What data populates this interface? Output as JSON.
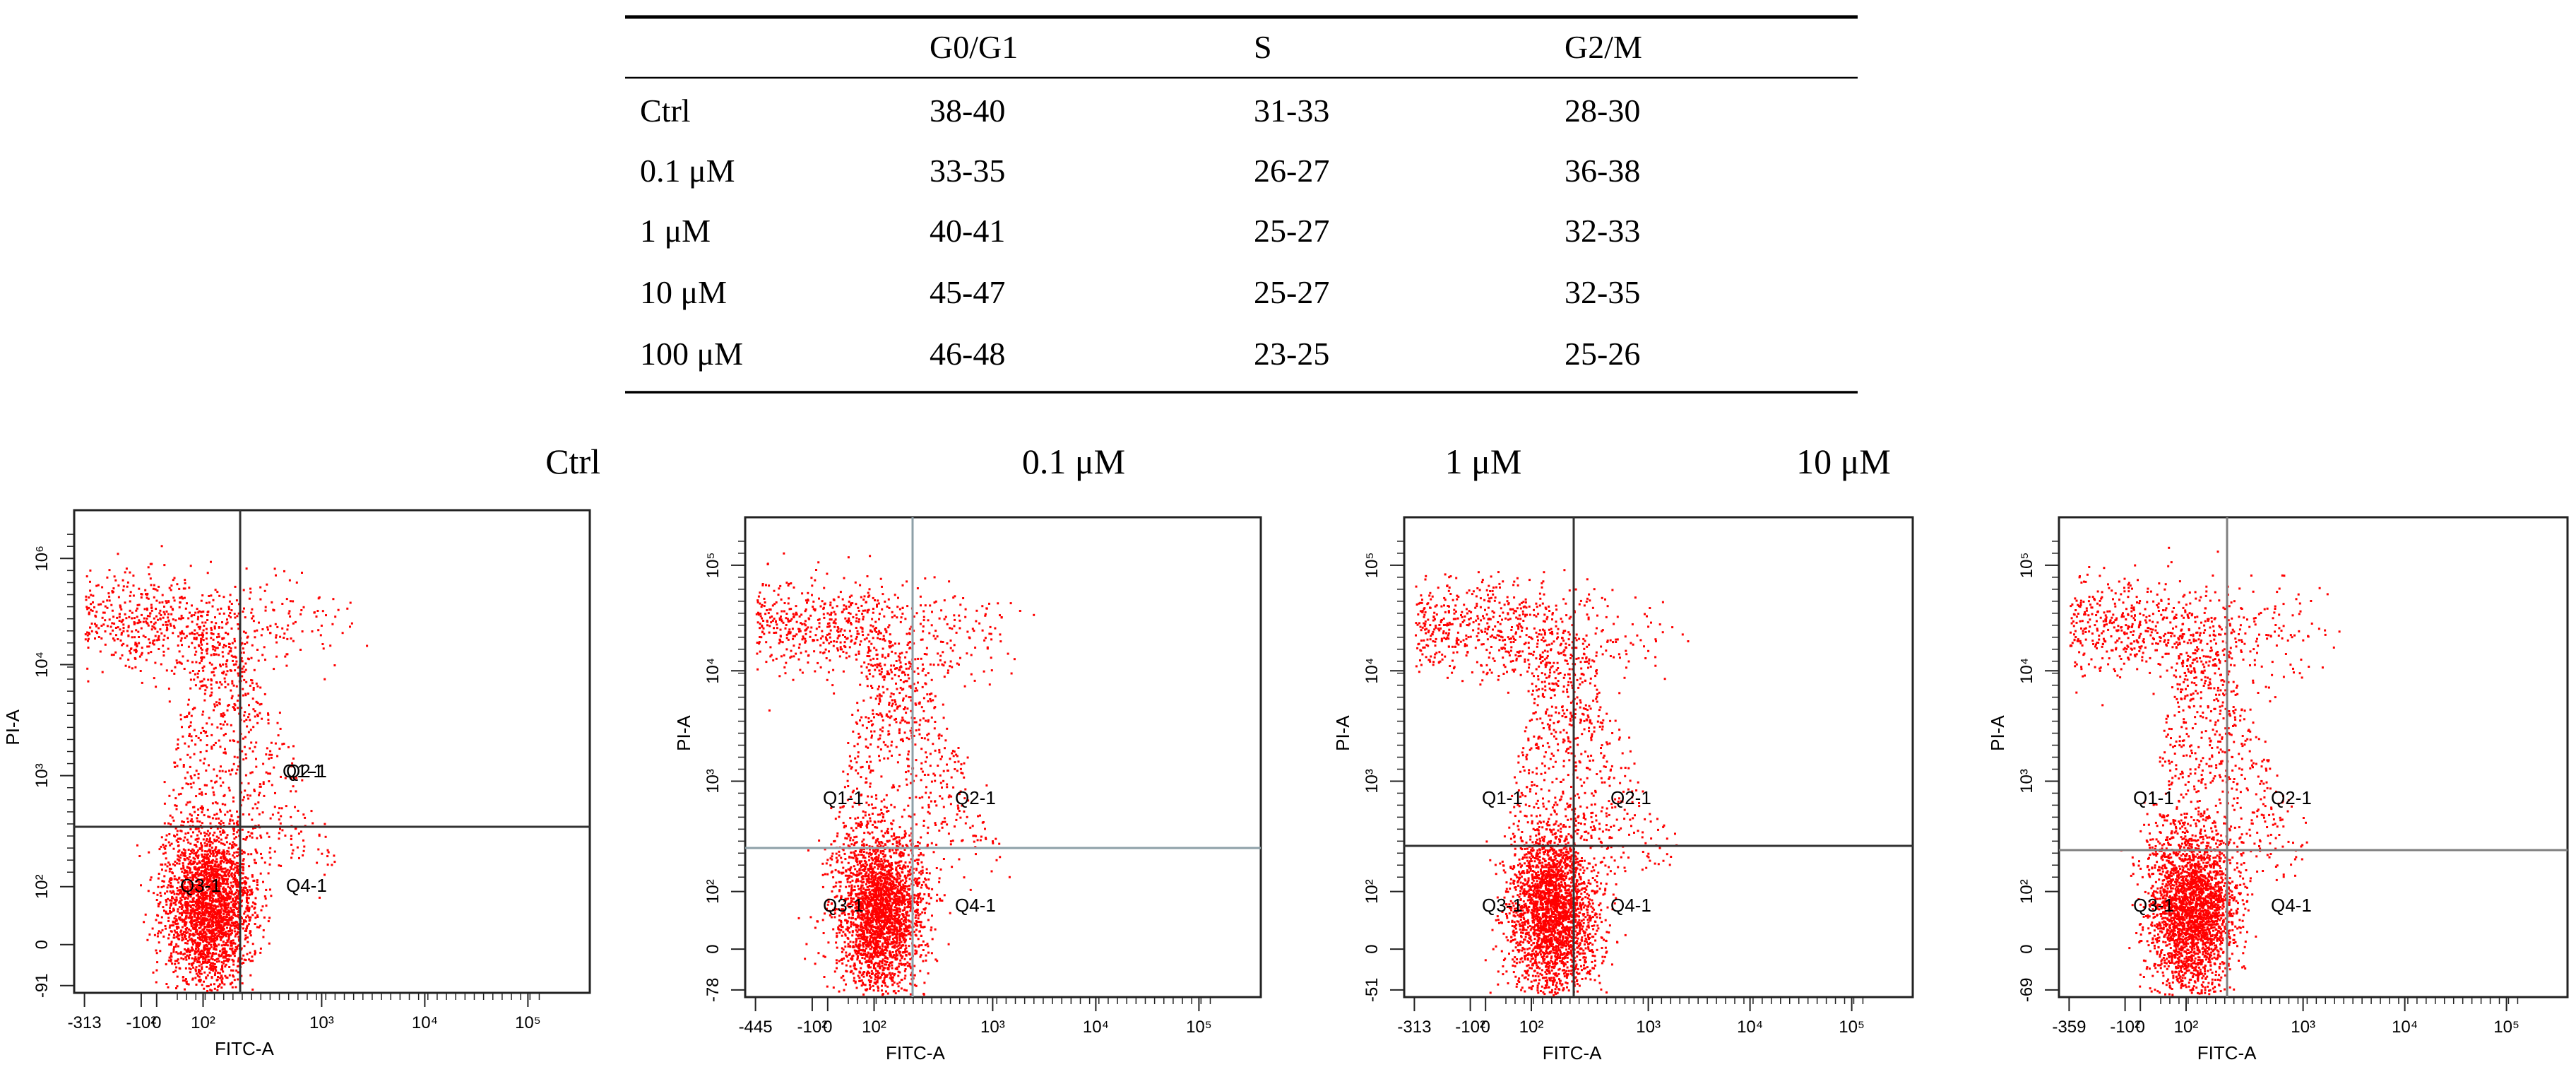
{
  "chart_data": {
    "type": "table",
    "table": {
      "headers": [
        "",
        "G0/G1",
        "S",
        "G2/M"
      ],
      "rows": [
        [
          "Ctrl",
          "38-40",
          "31-33",
          "28-30"
        ],
        [
          "0.1 μM",
          "33-35",
          "26-27",
          "36-38"
        ],
        [
          "1 μM",
          "40-41",
          "25-27",
          "32-33"
        ],
        [
          "10 μM",
          "45-47",
          "25-27",
          "32-35"
        ],
        [
          "100 μM",
          "46-48",
          "23-25",
          "25-26"
        ]
      ]
    },
    "plots": [
      {
        "type": "scatter",
        "condition": "Ctrl",
        "xlabel": "FITC-A",
        "ylabel": "PI-A",
        "x_ticks": [
          "-313",
          "-10²",
          "0",
          "10²",
          "10³",
          "10⁴",
          "10⁵"
        ],
        "y_ticks": [
          "-91",
          "0",
          "10²",
          "10³",
          "10⁴",
          "10⁶"
        ],
        "quadrants": [
          "Q1-1",
          "Q2-1",
          "Q3-1",
          "Q4-1"
        ],
        "gate": {
          "x": 300,
          "y": 300
        },
        "point_color": "#ff0000",
        "line_color": "#333333"
      },
      {
        "type": "scatter",
        "condition": "0.1 μM",
        "xlabel": "FITC-A",
        "ylabel": "PI-A",
        "x_ticks": [
          "-445",
          "-10²",
          "0",
          "10²",
          "10³",
          "10⁴",
          "10⁵"
        ],
        "y_ticks": [
          "-78",
          "0",
          "10²",
          "10³",
          "10⁴",
          "10⁵"
        ],
        "quadrants": [
          "Q1-1",
          "Q2-1",
          "Q3-1",
          "Q4-1"
        ],
        "gate": {
          "x": 300,
          "y": 200
        },
        "point_color": "#ff0000",
        "line_color": "#8ea0a8"
      },
      {
        "type": "scatter",
        "condition": "1 μM",
        "xlabel": "FITC-A",
        "ylabel": "PI-A",
        "x_ticks": [
          "-313",
          "-10²",
          "0",
          "10²",
          "10³",
          "10⁴",
          "10⁵"
        ],
        "y_ticks": [
          "-51",
          "0",
          "10²",
          "10³",
          "10⁴",
          "10⁵"
        ],
        "quadrants": [
          "Q1-1",
          "Q2-1",
          "Q3-1",
          "Q4-1"
        ],
        "gate": {
          "x": 400,
          "y": 200
        },
        "point_color": "#ff0000",
        "line_color": "#333333"
      },
      {
        "type": "scatter",
        "condition": "10 μM",
        "xlabel": "FITC-A",
        "ylabel": "PI-A",
        "x_ticks": [
          "-359",
          "-10²",
          "0",
          "10²",
          "10³",
          "10⁴",
          "10⁵"
        ],
        "y_ticks": [
          "-69",
          "0",
          "10²",
          "10³",
          "10⁴",
          "10⁵"
        ],
        "quadrants": [
          "Q1-1",
          "Q2-1",
          "Q3-1",
          "Q4-1"
        ],
        "gate": {
          "x": 300,
          "y": 200
        },
        "point_color": "#ff0000",
        "line_color": "#808080"
      }
    ]
  }
}
